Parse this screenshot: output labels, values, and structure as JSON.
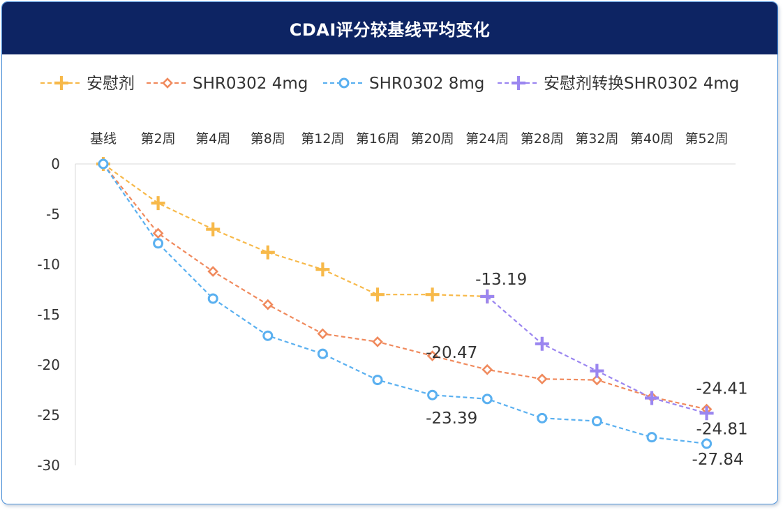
{
  "header": {
    "title": "CDAI评分较基线平均变化"
  },
  "colors": {
    "placebo": "#f7b94a",
    "shr4": "#f08a5d",
    "shr8": "#5ab0f0",
    "switch": "#9b86f0",
    "header_bg": "#0d2463"
  },
  "chart_data": {
    "type": "line",
    "title": "CDAI评分较基线平均变化",
    "categories": [
      "基线",
      "第2周",
      "第4周",
      "第8周",
      "第12周",
      "第16周",
      "第20周",
      "第24周",
      "第28周",
      "第32周",
      "第40周",
      "第52周"
    ],
    "ylim": [
      -30,
      0
    ],
    "yticks": [
      0,
      -5,
      -10,
      -15,
      -20,
      -25,
      -30
    ],
    "legend_position": "top",
    "series": [
      {
        "name": "安慰剂",
        "key": "placebo",
        "marker": "plus",
        "values": [
          0,
          -3.9,
          -6.5,
          -8.8,
          -10.5,
          -13.0,
          -13.0,
          -13.19,
          null,
          null,
          null,
          null
        ]
      },
      {
        "name": "SHR0302 4mg",
        "key": "shr4",
        "marker": "diamond",
        "values": [
          0,
          -6.9,
          -10.7,
          -14.0,
          -16.9,
          -17.7,
          -19.1,
          -20.47,
          -21.4,
          -21.5,
          -23.2,
          -24.41
        ]
      },
      {
        "name": "SHR0302 8mg",
        "key": "shr8",
        "marker": "circle",
        "values": [
          0,
          -7.9,
          -13.4,
          -17.1,
          -18.9,
          -21.5,
          -23.0,
          -23.39,
          -25.3,
          -25.6,
          -27.2,
          -27.84
        ]
      },
      {
        "name": "安慰剂转换SHR0302 4mg",
        "key": "switch",
        "marker": "plus",
        "values": [
          null,
          null,
          null,
          null,
          null,
          null,
          null,
          -13.19,
          -17.9,
          -20.6,
          -23.3,
          -24.81
        ]
      }
    ],
    "data_labels": [
      {
        "text": "-13.19",
        "category": "第24周",
        "value": -13.19
      },
      {
        "text": "-20.47",
        "category": "第24周",
        "value": -20.47
      },
      {
        "text": "-23.39",
        "category": "第24周",
        "value": -23.39
      },
      {
        "text": "-24.41",
        "category": "第52周",
        "value": -24.41
      },
      {
        "text": "-24.81",
        "category": "第52周",
        "value": -24.81
      },
      {
        "text": "-27.84",
        "category": "第52周",
        "value": -27.84
      }
    ]
  }
}
